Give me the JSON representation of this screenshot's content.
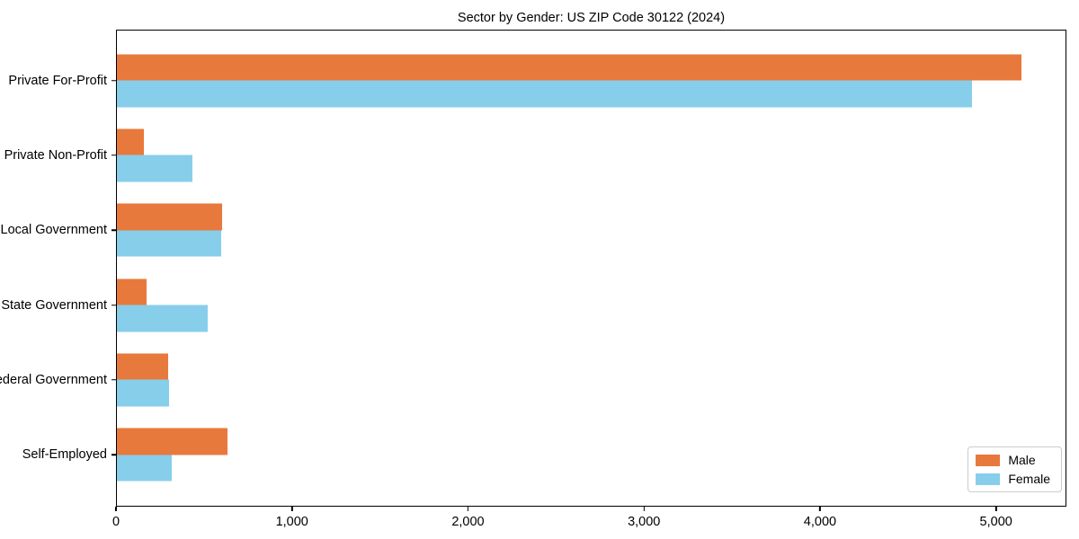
{
  "chart_data": {
    "type": "bar",
    "orientation": "horizontal",
    "title": "Sector by Gender: US ZIP Code 30122 (2024)",
    "categories": [
      "Private For-Profit",
      "Private Non-Profit",
      "Local Government",
      "State Government",
      "Federal Government",
      "Self-Employed"
    ],
    "series": [
      {
        "name": "Male",
        "color": "#E8793C",
        "values": [
          5150,
          155,
          600,
          170,
          290,
          630
        ]
      },
      {
        "name": "Female",
        "color": "#87CEEB",
        "values": [
          4870,
          430,
          595,
          515,
          295,
          310
        ]
      }
    ],
    "xlabel": "",
    "ylabel": "",
    "xlim": [
      0,
      5400
    ],
    "x_ticks": [
      {
        "value": 0,
        "label": "0"
      },
      {
        "value": 1000,
        "label": "1,000"
      },
      {
        "value": 2000,
        "label": "2,000"
      },
      {
        "value": 3000,
        "label": "3,000"
      },
      {
        "value": 4000,
        "label": "4,000"
      },
      {
        "value": 5000,
        "label": "5,000"
      }
    ],
    "grid": false,
    "legend": {
      "position": "lower right"
    },
    "colors": {
      "spine": "#000000",
      "legend_border": "#cccccc",
      "background": "#ffffff"
    }
  }
}
